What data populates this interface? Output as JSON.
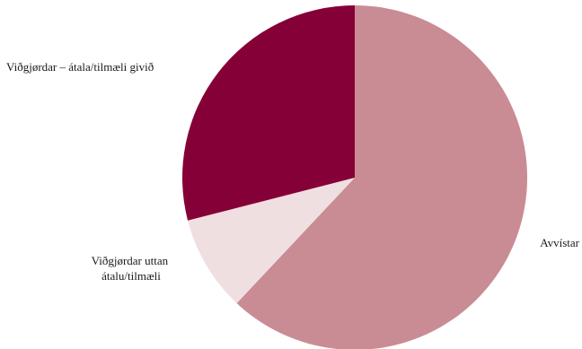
{
  "chart_data": {
    "type": "pie",
    "title": "",
    "slices": [
      {
        "label": "Avvístar",
        "label_lines": [
          "Avvístar"
        ],
        "value": 62,
        "color": "#c98c94"
      },
      {
        "label": "Viðgjørdar uttan átalu/tilmæli",
        "label_lines": [
          "Viðgjørdar uttan",
          "átalu/tilmæli"
        ],
        "value": 9,
        "color": "#f0dfe1"
      },
      {
        "label": "Viðgjørdar – átala/tilmæli givið",
        "label_lines": [
          "Viðgjørdar – átala/tilmæli givið"
        ],
        "value": 29,
        "color": "#860038"
      }
    ],
    "start": "12 o'clock",
    "direction": "clockwise",
    "legend": "none"
  }
}
